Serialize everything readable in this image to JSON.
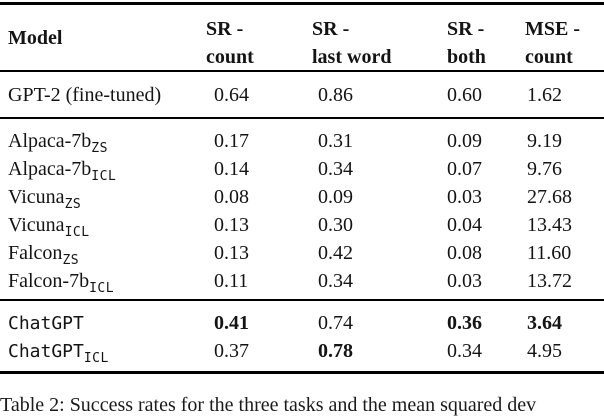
{
  "colors": {
    "background": "#ffffff",
    "text": "#141414",
    "rule": "#000000"
  },
  "table": {
    "header": {
      "model_label": "Model",
      "columns": [
        {
          "line1": "SR -",
          "line2": "count"
        },
        {
          "line1": "SR -",
          "line2": "last word"
        },
        {
          "line1": "SR -",
          "line2": "both"
        },
        {
          "line1": "MSE -",
          "line2": "count"
        }
      ]
    },
    "groups": [
      {
        "rows": [
          {
            "name_parts": [
              {
                "text": "GPT-2 (fine-tuned)",
                "font": "serif"
              }
            ],
            "values": [
              "0.64",
              "0.86",
              "0.60",
              "1.62"
            ],
            "bold": [
              false,
              false,
              false,
              false
            ]
          }
        ]
      },
      {
        "rows": [
          {
            "name_parts": [
              {
                "text": "Alpaca-7b",
                "font": "serif"
              },
              {
                "text": "ZS",
                "font": "mono",
                "subscript": true
              }
            ],
            "values": [
              "0.17",
              "0.31",
              "0.09",
              "9.19"
            ],
            "bold": [
              false,
              false,
              false,
              false
            ]
          },
          {
            "name_parts": [
              {
                "text": "Alpaca-7b",
                "font": "serif"
              },
              {
                "text": "ICL",
                "font": "mono",
                "subscript": true
              }
            ],
            "values": [
              "0.14",
              "0.34",
              "0.07",
              "9.76"
            ],
            "bold": [
              false,
              false,
              false,
              false
            ]
          },
          {
            "name_parts": [
              {
                "text": "Vicuna",
                "font": "serif"
              },
              {
                "text": "ZS",
                "font": "mono",
                "subscript": true
              }
            ],
            "values": [
              "0.08",
              "0.09",
              "0.03",
              "27.68"
            ],
            "bold": [
              false,
              false,
              false,
              false
            ]
          },
          {
            "name_parts": [
              {
                "text": "Vicuna",
                "font": "serif"
              },
              {
                "text": "ICL",
                "font": "mono",
                "subscript": true
              }
            ],
            "values": [
              "0.13",
              "0.30",
              "0.04",
              "13.43"
            ],
            "bold": [
              false,
              false,
              false,
              false
            ]
          },
          {
            "name_parts": [
              {
                "text": "Falcon",
                "font": "serif"
              },
              {
                "text": "ZS",
                "font": "mono",
                "subscript": true
              }
            ],
            "values": [
              "0.13",
              "0.42",
              "0.08",
              "11.60"
            ],
            "bold": [
              false,
              false,
              false,
              false
            ]
          },
          {
            "name_parts": [
              {
                "text": "Falcon-7b",
                "font": "serif"
              },
              {
                "text": "ICL",
                "font": "mono",
                "subscript": true
              }
            ],
            "values": [
              "0.11",
              "0.34",
              "0.03",
              "13.72"
            ],
            "bold": [
              false,
              false,
              false,
              false
            ]
          }
        ]
      },
      {
        "rows": [
          {
            "name_parts": [
              {
                "text": "ChatGPT",
                "font": "mono"
              }
            ],
            "values": [
              "0.41",
              "0.74",
              "0.36",
              "3.64"
            ],
            "bold": [
              true,
              false,
              true,
              true
            ]
          },
          {
            "name_parts": [
              {
                "text": "ChatGPT",
                "font": "mono"
              },
              {
                "text": "ICL",
                "font": "mono",
                "subscript": true
              }
            ],
            "values": [
              "0.37",
              "0.78",
              "0.34",
              "4.95"
            ],
            "bold": [
              false,
              true,
              false,
              false
            ]
          }
        ]
      }
    ]
  },
  "caption": {
    "text": "Table 2: Success rates for the three tasks and the mean squared dev"
  }
}
